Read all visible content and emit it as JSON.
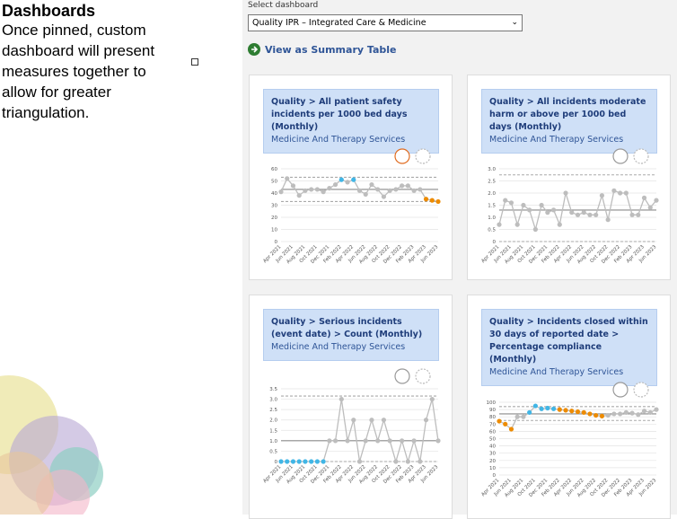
{
  "slide": {
    "heading": "Dashboards",
    "body": "Once pinned, custom dashboard will present measures together to allow for greater triangulation."
  },
  "dashboard": {
    "select_label": "Select dashboard",
    "selected": "Quality IPR – Integrated Care & Medicine",
    "summary_link": "View as Summary Table"
  },
  "charts": [
    {
      "type": "line",
      "title": "Quality > All patient safety incidents per 1000 bed days (Monthly)",
      "subtitle": "Medicine And Therapy Services",
      "categories": [
        "Apr 2021",
        null,
        "Jun 2021",
        null,
        "Aug 2021",
        null,
        "Oct 2021",
        null,
        "Dec 2021",
        null,
        "Feb 2022",
        null,
        "Apr 2022",
        null,
        "Jun 2022",
        null,
        "Aug 2022",
        null,
        "Oct 2022",
        null,
        "Dec 2022",
        null,
        "Feb 2023",
        null,
        "Apr 2023",
        null,
        "Jun 2023"
      ],
      "values": [
        41,
        52,
        46,
        38,
        42,
        43,
        43,
        41,
        44,
        47,
        51,
        49,
        51,
        42,
        39,
        47,
        43,
        37,
        42,
        43,
        46,
        46,
        42,
        43,
        35,
        34,
        33
      ],
      "point_colors": [
        "#bdbdbd",
        "#bdbdbd",
        "#bdbdbd",
        "#bdbdbd",
        "#bdbdbd",
        "#bdbdbd",
        "#bdbdbd",
        "#bdbdbd",
        "#bdbdbd",
        "#bdbdbd",
        "#41b6e6",
        "#bdbdbd",
        "#41b6e6",
        "#bdbdbd",
        "#bdbdbd",
        "#bdbdbd",
        "#bdbdbd",
        "#bdbdbd",
        "#bdbdbd",
        "#bdbdbd",
        "#bdbdbd",
        "#bdbdbd",
        "#bdbdbd",
        "#bdbdbd",
        "#ed8b00",
        "#ed8b00",
        "#ed8b00"
      ],
      "mean": 43,
      "ucl": 53,
      "lcl": 33,
      "ylim": [
        0,
        60
      ],
      "yticks": [
        0,
        10,
        20,
        30,
        40,
        50,
        60
      ],
      "grid": true
    },
    {
      "type": "line",
      "title": "Quality > All incidents moderate harm or above per 1000 bed days (Monthly)",
      "subtitle": "Medicine And Therapy Services",
      "categories": [
        "Apr 2021",
        null,
        "Jun 2021",
        null,
        "Aug 2021",
        null,
        "Oct 2021",
        null,
        "Dec 2021",
        null,
        "Feb 2022",
        null,
        "Apr 2022",
        null,
        "Jun 2022",
        null,
        "Aug 2022",
        null,
        "Oct 2022",
        null,
        "Dec 2022",
        null,
        "Feb 2023",
        null,
        "Apr 2023",
        null,
        "Jun 2023"
      ],
      "values": [
        0.7,
        1.7,
        1.6,
        0.7,
        1.5,
        1.3,
        0.5,
        1.5,
        1.2,
        1.3,
        0.7,
        2.0,
        1.2,
        1.1,
        1.2,
        1.1,
        1.1,
        1.9,
        0.9,
        2.1,
        2.0,
        2.0,
        1.1,
        1.1,
        1.8,
        1.4,
        1.7
      ],
      "point_colors": [
        "#bdbdbd",
        "#bdbdbd",
        "#bdbdbd",
        "#bdbdbd",
        "#bdbdbd",
        "#bdbdbd",
        "#bdbdbd",
        "#bdbdbd",
        "#bdbdbd",
        "#bdbdbd",
        "#bdbdbd",
        "#bdbdbd",
        "#bdbdbd",
        "#bdbdbd",
        "#bdbdbd",
        "#bdbdbd",
        "#bdbdbd",
        "#bdbdbd",
        "#bdbdbd",
        "#bdbdbd",
        "#bdbdbd",
        "#bdbdbd",
        "#bdbdbd",
        "#bdbdbd",
        "#bdbdbd",
        "#bdbdbd",
        "#bdbdbd"
      ],
      "mean": 1.3,
      "ucl": 2.75,
      "lcl": 0,
      "ylim": [
        0,
        3
      ],
      "yticks": [
        0,
        0.5,
        {
          "value": 1,
          "label": "1.0"
        },
        1.5,
        {
          "value": 2,
          "label": "2.0"
        },
        2.5,
        {
          "value": 3,
          "label": "3.0"
        }
      ],
      "grid": true
    },
    {
      "type": "line",
      "title": "Quality > Serious incidents (event date) > Count (Monthly)",
      "subtitle": "Medicine And Therapy Services",
      "categories": [
        "Apr 2021",
        null,
        "Jun 2021",
        null,
        "Aug 2021",
        null,
        "Oct 2021",
        null,
        "Dec 2021",
        null,
        "Feb 2022",
        null,
        "Apr 2022",
        null,
        "Jun 2022",
        null,
        "Aug 2022",
        null,
        "Oct 2022",
        null,
        "Dec 2022",
        null,
        "Feb 2023",
        null,
        "Apr 2023",
        null,
        "Jun 2023"
      ],
      "values": [
        0,
        0,
        0,
        0,
        0,
        0,
        0,
        0,
        1,
        1,
        3,
        1,
        2,
        0,
        1,
        2,
        1,
        2,
        1,
        0,
        1,
        0,
        1,
        0,
        2,
        3,
        1
      ],
      "point_colors": [
        "#41b6e6",
        "#41b6e6",
        "#41b6e6",
        "#41b6e6",
        "#41b6e6",
        "#41b6e6",
        "#41b6e6",
        "#41b6e6",
        "#bdbdbd",
        "#bdbdbd",
        "#bdbdbd",
        "#bdbdbd",
        "#bdbdbd",
        "#bdbdbd",
        "#bdbdbd",
        "#bdbdbd",
        "#bdbdbd",
        "#bdbdbd",
        "#bdbdbd",
        "#bdbdbd",
        "#bdbdbd",
        "#bdbdbd",
        "#bdbdbd",
        "#bdbdbd",
        "#bdbdbd",
        "#bdbdbd",
        "#bdbdbd"
      ],
      "mean": 1,
      "ucl": 3.15,
      "lcl": 0,
      "ylim": [
        0,
        3.5
      ],
      "yticks": [
        0,
        0.5,
        {
          "value": 1,
          "label": "1.0"
        },
        1.5,
        {
          "value": 2,
          "label": "2.0"
        },
        2.5,
        {
          "value": 3,
          "label": "3.0"
        },
        3.5
      ],
      "grid": true
    },
    {
      "type": "line",
      "title": "Quality > Incidents closed within 30 days of reported date > Percentage compliance (Monthly)",
      "subtitle": "Medicine And Therapy Services",
      "categories": [
        "Apr 2021",
        null,
        "Jun 2021",
        null,
        "Aug 2021",
        null,
        "Oct 2021",
        null,
        "Dec 2021",
        null,
        "Feb 2022",
        null,
        "Apr 2022",
        null,
        "Jun 2022",
        null,
        "Aug 2022",
        null,
        "Oct 2022",
        null,
        "Dec 2022",
        null,
        "Feb 2023",
        null,
        "Apr 2023",
        null,
        "Jun 2023"
      ],
      "values": [
        74,
        70,
        63,
        80,
        80,
        86,
        95,
        91,
        92,
        91,
        90,
        89,
        88,
        87,
        86,
        84,
        82,
        81,
        82,
        84,
        84,
        86,
        85,
        83,
        88,
        86,
        90
      ],
      "point_colors": [
        "#ed8b00",
        "#ed8b00",
        "#ed8b00",
        "#bdbdbd",
        "#bdbdbd",
        "#41b6e6",
        "#41b6e6",
        "#41b6e6",
        "#41b6e6",
        "#41b6e6",
        "#ed8b00",
        "#ed8b00",
        "#ed8b00",
        "#ed8b00",
        "#ed8b00",
        "#ed8b00",
        "#ed8b00",
        "#ed8b00",
        "#bdbdbd",
        "#bdbdbd",
        "#bdbdbd",
        "#bdbdbd",
        "#bdbdbd",
        "#bdbdbd",
        "#bdbdbd",
        "#bdbdbd",
        "#bdbdbd"
      ],
      "mean": 84,
      "ucl": 94,
      "lcl": 75,
      "ylim": [
        0,
        100
      ],
      "yticks": [
        0,
        10,
        20,
        30,
        40,
        50,
        60,
        70,
        80,
        90,
        100
      ],
      "grid": true
    }
  ]
}
